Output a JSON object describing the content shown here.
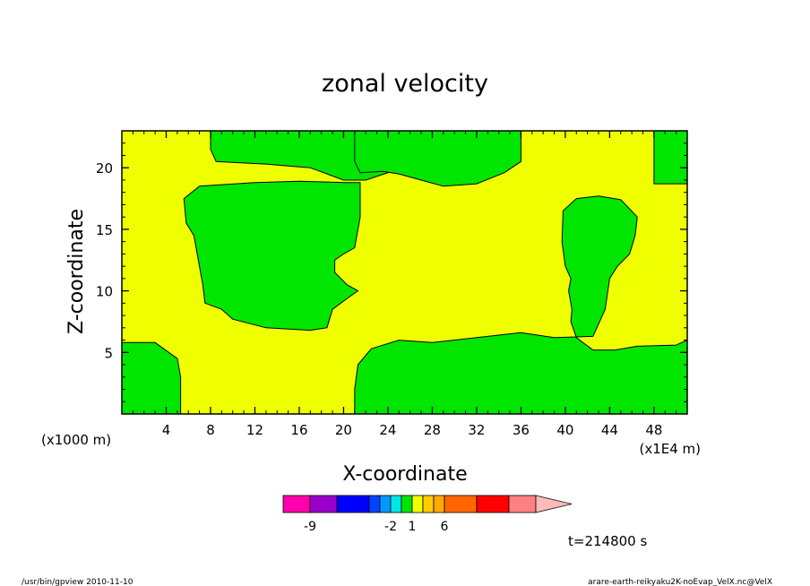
{
  "chart_data": {
    "type": "heatmap",
    "subtype": "filled-contour",
    "title": "zonal velocity",
    "xlabel": "X-coordinate",
    "ylabel": "Z-coordinate",
    "x_unit_note": "(x1E4 m)",
    "y_unit_note": "(x1000 m)",
    "xlim": [
      0,
      51
    ],
    "ylim": [
      0,
      23
    ],
    "x_ticks": [
      4,
      8,
      12,
      16,
      20,
      24,
      28,
      32,
      36,
      40,
      44,
      48
    ],
    "y_ticks": [
      5,
      10,
      15,
      20
    ],
    "background_color": "#f0ff00",
    "regions": [
      {
        "name": "negative",
        "color": "#00e600",
        "polygons": [
          [
            [
              0,
              5.8
            ],
            [
              3,
              5.8
            ],
            [
              5,
              4.5
            ],
            [
              5.3,
              3
            ],
            [
              5.3,
              0
            ],
            [
              0,
              0
            ]
          ],
          [
            [
              8,
              23
            ],
            [
              25,
              23
            ],
            [
              25,
              22
            ],
            [
              27,
              20.5
            ],
            [
              22,
              19
            ],
            [
              20,
              19
            ],
            [
              17,
              20
            ],
            [
              13,
              20.3
            ],
            [
              8.5,
              20.5
            ],
            [
              8,
              21.5
            ]
          ],
          [
            [
              21.5,
              18.8
            ],
            [
              20,
              18.8
            ],
            [
              16,
              18.9
            ],
            [
              12,
              18.8
            ],
            [
              7,
              18.5
            ],
            [
              5.6,
              17.5
            ],
            [
              5.8,
              15.5
            ],
            [
              6.5,
              14.5
            ],
            [
              6.8,
              13
            ],
            [
              7.3,
              10.5
            ],
            [
              7.5,
              9
            ],
            [
              9,
              8.5
            ],
            [
              10,
              7.7
            ],
            [
              13,
              7
            ],
            [
              17,
              6.8
            ],
            [
              18.5,
              7
            ],
            [
              19,
              8.5
            ],
            [
              20.5,
              9.5
            ],
            [
              21.3,
              10
            ],
            [
              20.3,
              10.5
            ],
            [
              19.2,
              11.5
            ],
            [
              19.2,
              12.5
            ],
            [
              20,
              13
            ],
            [
              21,
              13.5
            ],
            [
              21.5,
              16
            ]
          ],
          [
            [
              21,
              23
            ],
            [
              36,
              23
            ],
            [
              36,
              20.5
            ],
            [
              34.5,
              19.6
            ],
            [
              32,
              18.7
            ],
            [
              29,
              18.5
            ],
            [
              27,
              19
            ],
            [
              25,
              19.5
            ],
            [
              23.5,
              19.7
            ],
            [
              21.5,
              19.6
            ],
            [
              21,
              20.5
            ]
          ],
          [
            [
              21,
              0
            ],
            [
              51,
              0
            ],
            [
              51,
              6
            ],
            [
              50,
              5.6
            ],
            [
              46.5,
              5.5
            ],
            [
              44.5,
              5.2
            ],
            [
              42.5,
              5.2
            ],
            [
              41,
              6.2
            ],
            [
              40.5,
              7.5
            ],
            [
              40.6,
              8.5
            ],
            [
              40.3,
              10
            ],
            [
              40.5,
              11
            ],
            [
              40,
              12
            ],
            [
              39.7,
              14
            ],
            [
              39.8,
              16.5
            ],
            [
              41,
              17.5
            ],
            [
              43,
              17.7
            ],
            [
              45,
              17.4
            ],
            [
              46.5,
              16
            ],
            [
              46.3,
              14.5
            ],
            [
              45.8,
              13
            ],
            [
              44.7,
              12
            ],
            [
              44,
              11
            ],
            [
              43.6,
              8.5
            ],
            [
              42.5,
              6.3
            ],
            [
              39,
              6.2
            ],
            [
              36,
              6.6
            ],
            [
              32,
              6.2
            ],
            [
              28,
              5.8
            ],
            [
              25,
              6
            ],
            [
              22.5,
              5.3
            ],
            [
              21.3,
              4
            ],
            [
              21,
              2
            ]
          ],
          [
            [
              48,
              23
            ],
            [
              51,
              23
            ],
            [
              51,
              18.7
            ],
            [
              48,
              18.7
            ]
          ]
        ]
      }
    ],
    "colorbar": {
      "colors": [
        "#ff00aa",
        "#9900cc",
        "#0000ff",
        "#0044ff",
        "#0099ff",
        "#00e6e6",
        "#00e600",
        "#f0ff00",
        "#ffcc00",
        "#ffaa00",
        "#ff6600",
        "#ff0000",
        "#ff8080",
        "#ffbbbb"
      ],
      "labels": [
        "-9",
        "-2",
        "1",
        "6"
      ],
      "label_positions": [
        1,
        5,
        7,
        10
      ]
    }
  },
  "annotations": {
    "time": "t=214800 s",
    "footer_left": "/usr/bin/gpview  2010-11-10",
    "footer_right": "arare-earth-reikyaku2K-noEvap_VelX.nc@VelX"
  }
}
